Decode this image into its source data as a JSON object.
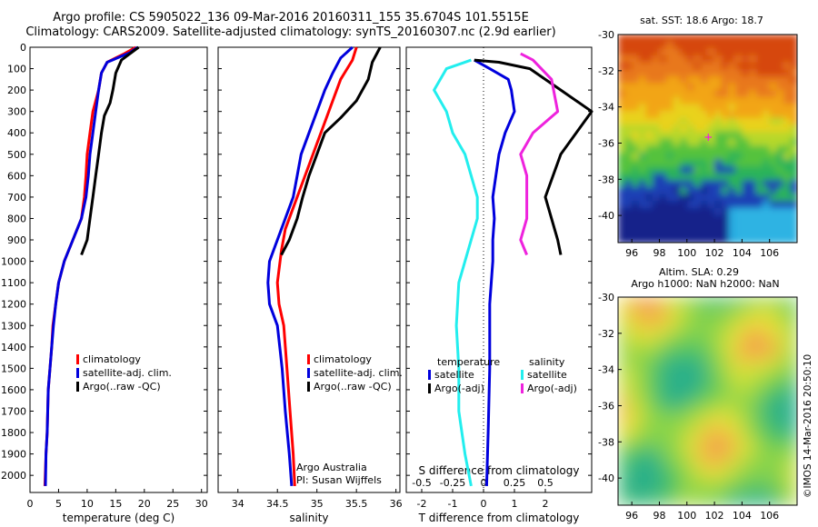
{
  "title": {
    "line1": "Argo profile: CS 5905022_136 09-Mar-2016 20160311_155 35.6704S 101.5515E",
    "line2": "Climatology: CARS2009. Satellite-adjusted climatology: synTS_20160307.nc (2.9d earlier)"
  },
  "credit": "©IMOS 14-Mar-2016 20:50:10",
  "colors": {
    "climatology": "#ff0000",
    "satellite": "#0000dd",
    "argo": "#000000",
    "sat_salinity": "#22eeee",
    "argo_salinity_adj": "#ee22dd"
  },
  "chart_data": [
    {
      "type": "line",
      "name_key": "temperature-profile",
      "xlabel": "temperature (deg C)",
      "xlim": [
        0,
        31
      ],
      "xticks": [
        0,
        5,
        10,
        15,
        20,
        25,
        30
      ],
      "ylim": [
        2080,
        0
      ],
      "yticks": [
        0,
        100,
        200,
        300,
        400,
        500,
        600,
        700,
        800,
        900,
        1000,
        1100,
        1200,
        1300,
        1400,
        1500,
        1600,
        1700,
        1800,
        1900,
        2000
      ],
      "legend": [
        "climatology",
        "satellite-adj. clim.",
        "Argo(..raw -QC)"
      ],
      "series": [
        {
          "name": "climatology",
          "color": "#ff0000",
          "points": [
            [
              18.5,
              0
            ],
            [
              16.5,
              30
            ],
            [
              13.5,
              70
            ],
            [
              12.5,
              120
            ],
            [
              12,
              200
            ],
            [
              11,
              300
            ],
            [
              10.5,
              400
            ],
            [
              10,
              500
            ],
            [
              9.8,
              600
            ],
            [
              9.5,
              700
            ],
            [
              9,
              800
            ],
            [
              7.5,
              900
            ],
            [
              6,
              1000
            ],
            [
              5,
              1100
            ],
            [
              4.5,
              1200
            ],
            [
              4,
              1300
            ],
            [
              3.8,
              1400
            ],
            [
              3.5,
              1500
            ],
            [
              3.2,
              1600
            ],
            [
              3,
              1800
            ],
            [
              2.8,
              1900
            ],
            [
              2.6,
              2050
            ]
          ]
        },
        {
          "name": "satellite-adj. clim.",
          "color": "#0000dd",
          "points": [
            [
              18.8,
              0
            ],
            [
              17.5,
              25
            ],
            [
              13.5,
              70
            ],
            [
              12.5,
              120
            ],
            [
              12,
              200
            ],
            [
              11.5,
              300
            ],
            [
              11,
              400
            ],
            [
              10.5,
              500
            ],
            [
              10.2,
              600
            ],
            [
              9.8,
              700
            ],
            [
              9,
              800
            ],
            [
              7.5,
              900
            ],
            [
              6,
              1000
            ],
            [
              5,
              1100
            ],
            [
              4.5,
              1200
            ],
            [
              4.1,
              1300
            ],
            [
              3.8,
              1400
            ],
            [
              3.5,
              1500
            ],
            [
              3.2,
              1600
            ],
            [
              3,
              1800
            ],
            [
              2.8,
              1900
            ],
            [
              2.7,
              2050
            ]
          ]
        },
        {
          "name": "Argo(..raw -QC)",
          "color": "#000000",
          "points": [
            [
              19,
              0
            ],
            [
              16,
              60
            ],
            [
              15,
              120
            ],
            [
              14.5,
              200
            ],
            [
              14,
              260
            ],
            [
              13,
              320
            ],
            [
              12.5,
              400
            ],
            [
              12,
              500
            ],
            [
              11.5,
              600
            ],
            [
              11,
              700
            ],
            [
              10.5,
              800
            ],
            [
              10,
              900
            ],
            [
              9,
              970
            ]
          ]
        }
      ]
    },
    {
      "type": "line",
      "name_key": "salinity-profile",
      "xlabel": "salinity",
      "xlim": [
        33.75,
        36.05
      ],
      "xticks": [
        34,
        34.5,
        35,
        35.5,
        36
      ],
      "ylim": [
        2080,
        0
      ],
      "legend": [
        "climatology",
        "satellite-adj. clim.",
        "Argo(..raw -QC)"
      ],
      "annotations": [
        "Argo Australia",
        "PI: Susan Wijffels"
      ],
      "series": [
        {
          "name": "climatology",
          "color": "#ff0000",
          "points": [
            [
              35.5,
              0
            ],
            [
              35.45,
              60
            ],
            [
              35.3,
              150
            ],
            [
              35.2,
              250
            ],
            [
              35.1,
              350
            ],
            [
              35,
              450
            ],
            [
              34.9,
              550
            ],
            [
              34.8,
              650
            ],
            [
              34.7,
              750
            ],
            [
              34.6,
              850
            ],
            [
              34.55,
              950
            ],
            [
              34.5,
              1100
            ],
            [
              34.52,
              1200
            ],
            [
              34.58,
              1300
            ],
            [
              34.62,
              1500
            ],
            [
              34.66,
              1700
            ],
            [
              34.7,
              1900
            ],
            [
              34.72,
              2050
            ]
          ]
        },
        {
          "name": "satellite-adj. clim.",
          "color": "#0000dd",
          "points": [
            [
              35.45,
              0
            ],
            [
              35.3,
              50
            ],
            [
              35.2,
              120
            ],
            [
              35.1,
              200
            ],
            [
              35,
              300
            ],
            [
              34.9,
              400
            ],
            [
              34.8,
              500
            ],
            [
              34.75,
              600
            ],
            [
              34.7,
              700
            ],
            [
              34.6,
              800
            ],
            [
              34.5,
              900
            ],
            [
              34.4,
              1000
            ],
            [
              34.38,
              1100
            ],
            [
              34.4,
              1200
            ],
            [
              34.5,
              1300
            ],
            [
              34.56,
              1500
            ],
            [
              34.6,
              1700
            ],
            [
              34.65,
              1900
            ],
            [
              34.68,
              2050
            ]
          ]
        },
        {
          "name": "Argo(..raw -QC)",
          "color": "#000000",
          "points": [
            [
              35.8,
              0
            ],
            [
              35.7,
              70
            ],
            [
              35.65,
              150
            ],
            [
              35.5,
              250
            ],
            [
              35.3,
              330
            ],
            [
              35.1,
              400
            ],
            [
              35,
              500
            ],
            [
              34.9,
              600
            ],
            [
              34.82,
              700
            ],
            [
              34.75,
              800
            ],
            [
              34.65,
              900
            ],
            [
              34.55,
              970
            ]
          ]
        }
      ]
    },
    {
      "type": "line",
      "name_key": "difference-profile",
      "xlabel": "T difference from climatology",
      "xlabel_top": "S difference from climatology",
      "xlim": [
        -2.5,
        3.5
      ],
      "xticks": [
        -2,
        -1,
        0,
        1,
        2
      ],
      "xticks_top": [
        -0.5,
        -0.25,
        0,
        0.25,
        0.5
      ],
      "ylim": [
        2080,
        0
      ],
      "legend_headers": [
        "temperature",
        "salinity"
      ],
      "legend": [
        "satellite",
        "Argo(-adj)",
        "satellite",
        "Argo(-adj)"
      ],
      "series": [
        {
          "name": "T satellite",
          "color": "#0000dd",
          "points": [
            [
              -0.3,
              60
            ],
            [
              0.2,
              100
            ],
            [
              0.8,
              150
            ],
            [
              0.9,
              200
            ],
            [
              1,
              300
            ],
            [
              0.7,
              400
            ],
            [
              0.5,
              500
            ],
            [
              0.4,
              600
            ],
            [
              0.3,
              700
            ],
            [
              0.35,
              800
            ],
            [
              0.3,
              900
            ],
            [
              0.3,
              1000
            ],
            [
              0.25,
              1100
            ],
            [
              0.2,
              1200
            ],
            [
              0.2,
              1500
            ],
            [
              0.15,
              1800
            ],
            [
              0.1,
              2050
            ]
          ]
        },
        {
          "name": "T Argo(-adj)",
          "color": "#000000",
          "points": [
            [
              -0.3,
              60
            ],
            [
              0.5,
              70
            ],
            [
              1.5,
              100
            ],
            [
              2.5,
              200
            ],
            [
              3.5,
              300
            ],
            [
              2.5,
              500
            ],
            [
              2,
              700
            ],
            [
              2.4,
              900
            ],
            [
              2.5,
              970
            ]
          ]
        },
        {
          "name": "S satellite",
          "color": "#22eeee",
          "points": [
            [
              -0.1,
              60
            ],
            [
              -0.3,
              100
            ],
            [
              -0.4,
              200
            ],
            [
              -0.3,
              300
            ],
            [
              -0.25,
              400
            ],
            [
              -0.15,
              500
            ],
            [
              -0.05,
              700
            ],
            [
              -0.05,
              800
            ],
            [
              -0.1,
              900
            ],
            [
              -0.15,
              1000
            ],
            [
              -0.2,
              1100
            ],
            [
              -0.22,
              1300
            ],
            [
              -0.2,
              1500
            ],
            [
              -0.2,
              1700
            ],
            [
              -0.15,
              1900
            ],
            [
              -0.1,
              2050
            ]
          ]
        },
        {
          "name": "S Argo(-adj)",
          "color": "#ee22dd",
          "points": [
            [
              0.3,
              30
            ],
            [
              0.4,
              60
            ],
            [
              0.55,
              150
            ],
            [
              0.6,
              300
            ],
            [
              0.4,
              400
            ],
            [
              0.3,
              500
            ],
            [
              0.35,
              600
            ],
            [
              0.35,
              800
            ],
            [
              0.3,
              900
            ],
            [
              0.35,
              970
            ]
          ]
        }
      ]
    },
    {
      "type": "heatmap",
      "name_key": "sst-map",
      "title": "sat. SST: 18.6  Argo: 18.7",
      "xlim": [
        95,
        108
      ],
      "ylim": [
        -41.5,
        -30
      ],
      "xticks": [
        96,
        98,
        100,
        102,
        104,
        106
      ],
      "yticks": [
        -30,
        -32,
        -34,
        -36,
        -38,
        -40
      ],
      "marker": {
        "lon": 101.55,
        "lat": -35.67
      }
    },
    {
      "type": "heatmap",
      "name_key": "sla-map",
      "title": "Altim. SLA: 0.29",
      "subtitle": "Argo h1000: NaN h2000: NaN",
      "xlim": [
        95,
        108
      ],
      "ylim": [
        -41.5,
        -30
      ],
      "xticks": [
        96,
        98,
        100,
        102,
        104,
        106
      ],
      "yticks": [
        -30,
        -32,
        -34,
        -36,
        -38,
        -40
      ]
    }
  ]
}
